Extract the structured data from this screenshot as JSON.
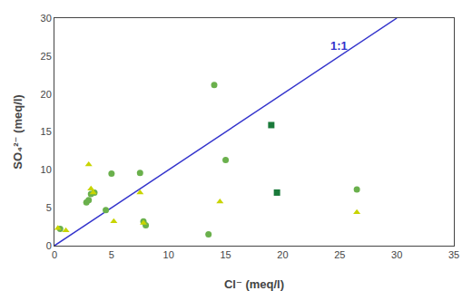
{
  "chart_data": {
    "type": "scatter",
    "xlabel": "Cl⁻ (meq/l)",
    "ylabel": "SO₄²⁻ (meq/l)",
    "xlim": [
      0,
      35
    ],
    "ylim": [
      0,
      30
    ],
    "xticks": [
      0,
      5,
      10,
      15,
      20,
      25,
      30,
      35
    ],
    "yticks": [
      0,
      5,
      10,
      15,
      20,
      25,
      30
    ],
    "grid": false,
    "series": [
      {
        "type": "scatter",
        "marker": "circle",
        "color": "#6ab04c",
        "x": [
          0.5,
          2.8,
          3.0,
          3.2,
          3.5,
          4.5,
          5.0,
          7.5,
          7.8,
          8.0,
          13.5,
          14.0,
          15.0,
          26.5
        ],
        "values": [
          2.2,
          5.7,
          6.0,
          6.8,
          7.0,
          4.7,
          9.5,
          9.6,
          3.2,
          2.7,
          1.5,
          21.2,
          11.3,
          7.4
        ]
      },
      {
        "type": "scatter",
        "marker": "triangle-up",
        "color": "#c8d400",
        "x": [
          0.3,
          1.0,
          3.0,
          3.2,
          3.4,
          5.2,
          7.5,
          7.8,
          14.5,
          26.5
        ],
        "values": [
          2.3,
          2.0,
          10.7,
          7.5,
          7.0,
          3.2,
          7.0,
          3.0,
          5.8,
          4.4
        ]
      },
      {
        "type": "scatter",
        "marker": "square",
        "color": "#1a7a3a",
        "x": [
          19.0,
          19.5
        ],
        "values": [
          15.9,
          7.0
        ]
      },
      {
        "type": "line",
        "line_style": "solid",
        "color": "#3333cc",
        "x": [
          0,
          30
        ],
        "values": [
          0,
          30
        ]
      }
    ],
    "annotations": [
      {
        "text": "1:1",
        "x": 24,
        "y": 27.5,
        "color": "#3333cc"
      }
    ]
  }
}
